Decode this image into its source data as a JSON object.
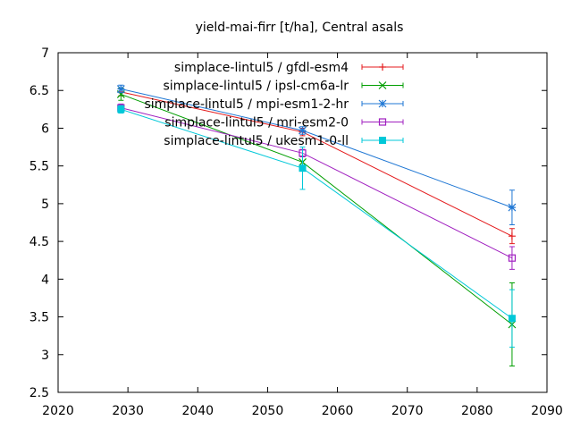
{
  "chart_data": {
    "type": "line",
    "title": "yield-mai-firr [t/ha], Central asals",
    "xlabel": "",
    "ylabel": "",
    "xlim": [
      2020,
      2090
    ],
    "ylim": [
      2.5,
      7
    ],
    "xticks": [
      2020,
      2030,
      2040,
      2050,
      2060,
      2070,
      2080,
      2090
    ],
    "yticks": [
      2.5,
      3,
      3.5,
      4,
      4.5,
      5,
      5.5,
      6,
      6.5,
      7
    ],
    "ytick_labels": [
      "2.5",
      "3",
      "3.5",
      "4",
      "4.5",
      "5",
      "5.5",
      "6",
      "6.5",
      "7"
    ],
    "legend_position": "top-right",
    "grid": false,
    "x": [
      2029,
      2055,
      2085
    ],
    "series": [
      {
        "name": "simplace-lintul5 / gfdl-esm4",
        "color": "#e41a1c",
        "marker": "plus",
        "values": [
          6.48,
          5.95,
          4.57
        ],
        "err_low": [
          0.05,
          0.05,
          0.1
        ],
        "err_high": [
          0.05,
          0.05,
          0.1
        ]
      },
      {
        "name": "simplace-lintul5 / ipsl-cm6a-lr",
        "color": "#009e00",
        "marker": "cross",
        "values": [
          6.45,
          5.55,
          3.4
        ],
        "err_low": [
          0.08,
          0.08,
          0.55
        ],
        "err_high": [
          0.08,
          0.08,
          0.55
        ]
      },
      {
        "name": "simplace-lintul5 / mpi-esm1-2-hr",
        "color": "#1f77d4",
        "marker": "star",
        "values": [
          6.52,
          5.97,
          4.95
        ],
        "err_low": [
          0.05,
          0.05,
          0.23
        ],
        "err_high": [
          0.05,
          0.05,
          0.23
        ]
      },
      {
        "name": "simplace-lintul5 / mri-esm2-0",
        "color": "#a020c0",
        "marker": "open-square",
        "values": [
          6.27,
          5.67,
          4.28
        ],
        "err_low": [
          0.05,
          0.05,
          0.15
        ],
        "err_high": [
          0.05,
          0.05,
          0.15
        ]
      },
      {
        "name": "simplace-lintul5 / ukesm1-0-ll",
        "color": "#00c8d8",
        "marker": "filled-square",
        "values": [
          6.25,
          5.47,
          3.48
        ],
        "err_low": [
          0.05,
          0.28,
          0.38
        ],
        "err_high": [
          0.05,
          0.28,
          0.38
        ]
      }
    ]
  }
}
